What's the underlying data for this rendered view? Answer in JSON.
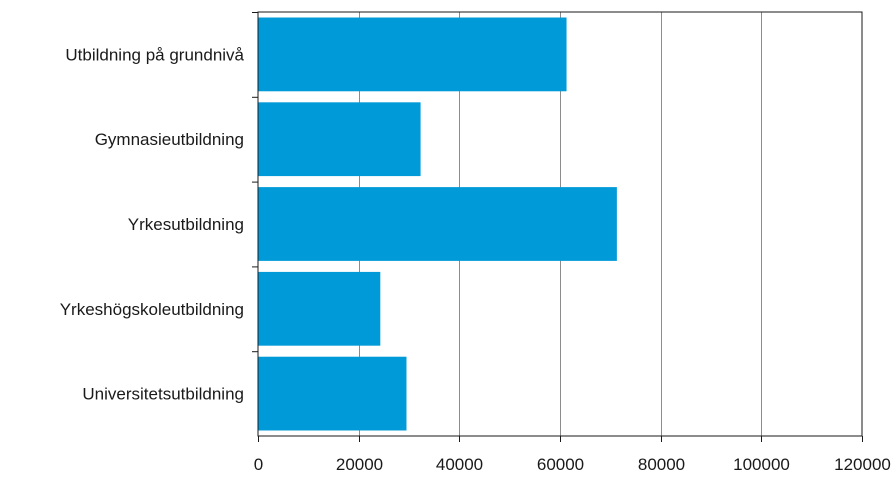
{
  "colors": {
    "bar": "#009ad9",
    "grid": "#8c8c8c",
    "axis": "#1a1a1a",
    "background": "#ffffff"
  },
  "chart_data": {
    "type": "bar",
    "orientation": "horizontal",
    "title": "",
    "xlabel": "",
    "ylabel": "",
    "categories": [
      "Utbildning på grundnivå",
      "Gymnasieutbildning",
      "Yrkesutbildning",
      "Yrkeshögskoleutbildning",
      "Universitetsutbildning"
    ],
    "values": [
      61300,
      32300,
      71300,
      24300,
      29500
    ],
    "xlim": [
      0,
      120000
    ],
    "xticks": [
      0,
      20000,
      40000,
      60000,
      80000,
      100000,
      120000
    ],
    "xtick_labels": [
      "0",
      "20000",
      "40000",
      "60000",
      "80000",
      "100000",
      "120000"
    ],
    "grid": "vertical",
    "legend": "none"
  }
}
